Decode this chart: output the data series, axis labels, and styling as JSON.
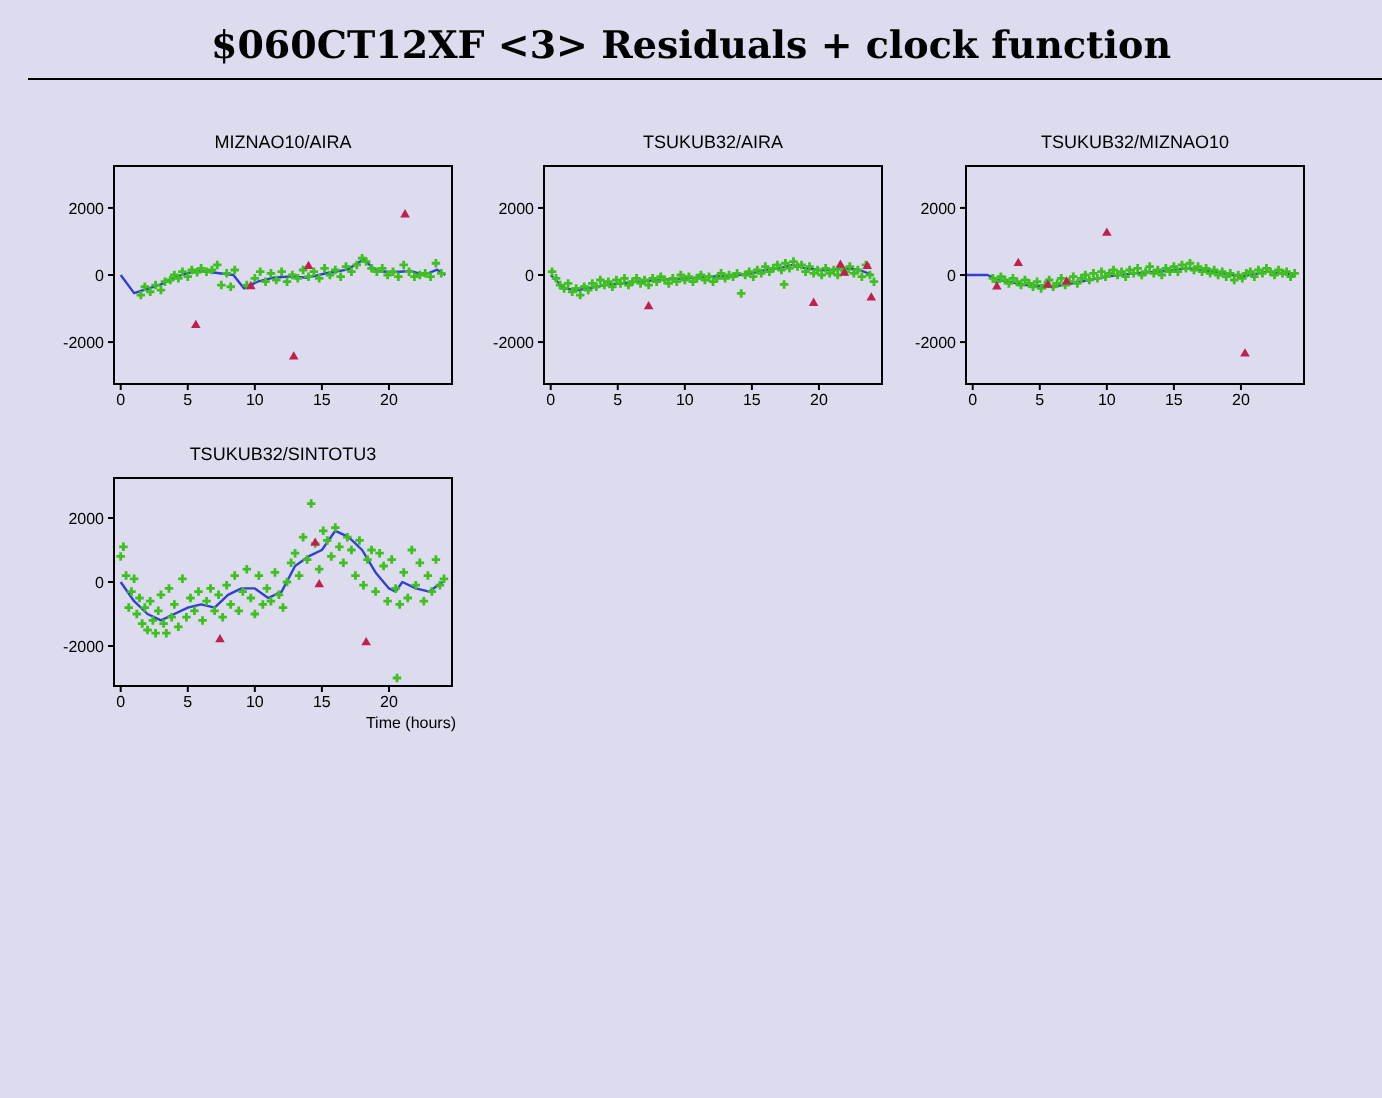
{
  "chart_data": [
    {
      "type": "scatter",
      "title": "MIZNAO10/AIRA",
      "annotations": [
        "$060CT12XF <3> Residuals + clock function"
      ],
      "xlim": [
        -0.5,
        24.7
      ],
      "ylim": [
        -3250,
        3250
      ],
      "xticks": [
        0,
        5,
        10,
        15,
        20
      ],
      "yticks": [
        -2000,
        0,
        2000
      ],
      "series": [
        {
          "type": "scatter",
          "marker": "cross",
          "color": "#40c020",
          "x": [
            1.5,
            1.8,
            2.2,
            2.6,
            3.0,
            3.3,
            3.7,
            4.0,
            4.3,
            4.6,
            5.0,
            5.3,
            5.7,
            6.0,
            6.4,
            6.8,
            7.2,
            7.5,
            7.9,
            8.2,
            8.5,
            9.4,
            10.0,
            10.4,
            10.8,
            11.2,
            11.6,
            12.0,
            12.4,
            12.8,
            13.2,
            13.6,
            14.0,
            14.4,
            14.8,
            15.2,
            15.6,
            16.0,
            16.4,
            16.8,
            17.2,
            17.6,
            18.0,
            18.3,
            18.7,
            19.1,
            19.5,
            19.9,
            20.3,
            20.7,
            21.1,
            21.5,
            21.9,
            22.3,
            22.7,
            23.1,
            23.5,
            23.9
          ],
          "values": [
            -600,
            -350,
            -500,
            -300,
            -450,
            -200,
            -150,
            0,
            -100,
            100,
            -50,
            150,
            80,
            200,
            100,
            150,
            300,
            -300,
            50,
            -350,
            150,
            -300,
            -100,
            100,
            -200,
            50,
            -150,
            100,
            -200,
            0,
            -100,
            150,
            -50,
            100,
            -100,
            200,
            0,
            150,
            -50,
            250,
            100,
            300,
            500,
            400,
            200,
            100,
            200,
            0,
            100,
            -50,
            300,
            100,
            -50,
            0,
            50,
            -50,
            350,
            50
          ]
        },
        {
          "type": "scatter",
          "marker": "triangle",
          "color": "#c02050",
          "x": [
            5.6,
            9.7,
            12.9,
            14.0,
            21.2
          ],
          "values": [
            -1500,
            -340,
            -2440,
            260,
            1800
          ]
        },
        {
          "type": "line",
          "marker": "none",
          "color": "#3040d0",
          "x": [
            0,
            1.0,
            1.8,
            3,
            4,
            5,
            6,
            7.2,
            8.4,
            9.2,
            10.2,
            11.4,
            12.7,
            13.9,
            15.4,
            16.9,
            18.1,
            19.1,
            20.3,
            21.6,
            22.6,
            23.6,
            24.2
          ],
          "values": [
            0,
            -540,
            -440,
            -280,
            -80,
            60,
            120,
            60,
            0,
            -400,
            -200,
            -80,
            -40,
            -80,
            60,
            160,
            460,
            120,
            80,
            120,
            0,
            160,
            0
          ]
        }
      ]
    },
    {
      "type": "scatter",
      "title": "TSUKUB32/AIRA",
      "xlim": [
        -0.5,
        24.7
      ],
      "ylim": [
        -3250,
        3250
      ],
      "xticks": [
        0,
        5,
        10,
        15,
        20
      ],
      "yticks": [
        -2000,
        0,
        2000
      ],
      "series": [
        {
          "type": "scatter",
          "marker": "cross",
          "color": "#40c020",
          "x": [
            0.1,
            0.4,
            0.7,
            1.0,
            1.3,
            1.6,
            1.9,
            2.2,
            2.5,
            2.8,
            3.1,
            3.4,
            3.7,
            4.0,
            4.3,
            4.6,
            4.9,
            5.2,
            5.5,
            5.8,
            6.1,
            6.4,
            6.7,
            7.0,
            7.3,
            7.6,
            7.9,
            8.2,
            8.5,
            8.8,
            9.1,
            9.4,
            9.7,
            10.0,
            10.3,
            10.6,
            10.9,
            11.2,
            11.5,
            11.8,
            12.1,
            12.4,
            12.7,
            13.0,
            13.3,
            13.6,
            13.9,
            14.2,
            14.5,
            14.8,
            15.1,
            15.4,
            15.7,
            16.0,
            16.3,
            16.6,
            16.9,
            17.2,
            17.4,
            17.5,
            17.8,
            18.1,
            18.4,
            18.7,
            19.0,
            19.3,
            19.6,
            19.9,
            20.2,
            20.5,
            20.8,
            21.1,
            21.4,
            21.7,
            22.0,
            22.3,
            22.6,
            22.9,
            23.2,
            23.5,
            23.8,
            24.1
          ],
          "values": [
            100,
            -100,
            -300,
            -400,
            -250,
            -500,
            -400,
            -600,
            -350,
            -450,
            -250,
            -350,
            -150,
            -300,
            -200,
            -350,
            -150,
            -250,
            -100,
            -300,
            -200,
            -100,
            -250,
            -150,
            -300,
            -100,
            -200,
            -50,
            -150,
            -250,
            -100,
            -200,
            0,
            -150,
            -50,
            -200,
            -100,
            0,
            -150,
            -50,
            -200,
            -100,
            50,
            -100,
            0,
            -50,
            50,
            -550,
            0,
            100,
            -50,
            150,
            50,
            250,
            100,
            200,
            300,
            150,
            -280,
            350,
            200,
            400,
            250,
            300,
            100,
            250,
            50,
            150,
            0,
            200,
            50,
            150,
            0,
            200,
            100,
            250,
            50,
            150,
            -50,
            300,
            0,
            -200
          ]
        },
        {
          "type": "scatter",
          "marker": "triangle",
          "color": "#c02050",
          "x": [
            7.3,
            19.6,
            21.6,
            21.9,
            23.6,
            23.9
          ],
          "values": [
            -940,
            -840,
            300,
            60,
            260,
            -680
          ]
        },
        {
          "type": "line",
          "marker": "none",
          "color": "#3040d0",
          "x": [
            0,
            1,
            2,
            3,
            4,
            6,
            8,
            10,
            12,
            14,
            15,
            16,
            17,
            18,
            19,
            20,
            21,
            22,
            23,
            24
          ],
          "values": [
            0,
            -400,
            -450,
            -380,
            -300,
            -220,
            -150,
            -100,
            -50,
            0,
            50,
            150,
            200,
            300,
            200,
            150,
            150,
            200,
            150,
            0
          ]
        }
      ]
    },
    {
      "type": "scatter",
      "title": "TSUKUB32/MIZNAO10",
      "xlim": [
        -0.5,
        24.7
      ],
      "ylim": [
        -3250,
        3250
      ],
      "xticks": [
        0,
        5,
        10,
        15,
        20
      ],
      "yticks": [
        -2000,
        0,
        2000
      ],
      "series": [
        {
          "type": "scatter",
          "marker": "cross",
          "color": "#40c020",
          "x": [
            1.5,
            1.8,
            2.1,
            2.4,
            2.7,
            3.0,
            3.3,
            3.6,
            3.9,
            4.2,
            4.5,
            4.8,
            5.1,
            5.4,
            5.7,
            6.0,
            6.3,
            6.6,
            6.9,
            7.2,
            7.5,
            7.8,
            8.1,
            8.4,
            8.7,
            9.0,
            9.3,
            9.6,
            9.9,
            10.2,
            10.5,
            10.8,
            11.1,
            11.4,
            11.7,
            12.0,
            12.3,
            12.6,
            12.9,
            13.2,
            13.5,
            13.8,
            14.1,
            14.4,
            14.7,
            15.0,
            15.3,
            15.6,
            15.9,
            16.2,
            16.5,
            16.8,
            17.1,
            17.4,
            17.7,
            18.0,
            18.3,
            18.6,
            18.9,
            19.2,
            19.5,
            19.8,
            20.1,
            20.4,
            20.7,
            21.0,
            21.3,
            21.6,
            21.9,
            22.2,
            22.5,
            22.8,
            23.1,
            23.4,
            23.7,
            24.0
          ],
          "values": [
            -100,
            -200,
            -50,
            -150,
            -250,
            -100,
            -200,
            -300,
            -150,
            -250,
            -350,
            -200,
            -400,
            -300,
            -150,
            -350,
            -250,
            -100,
            -300,
            -200,
            -50,
            -250,
            -100,
            0,
            -150,
            50,
            -100,
            100,
            -50,
            50,
            150,
            0,
            100,
            -50,
            150,
            50,
            200,
            0,
            100,
            250,
            50,
            150,
            0,
            200,
            100,
            250,
            100,
            300,
            200,
            350,
            150,
            250,
            100,
            200,
            50,
            150,
            0,
            100,
            -50,
            50,
            -150,
            0,
            -100,
            50,
            100,
            -50,
            150,
            50,
            200,
            100,
            0,
            150,
            50,
            100,
            -50,
            50
          ]
        },
        {
          "type": "scatter",
          "marker": "triangle",
          "color": "#c02050",
          "x": [
            1.8,
            3.4,
            5.6,
            7.0,
            10.0,
            20.3
          ],
          "values": [
            -350,
            350,
            -300,
            -200,
            1250,
            -2350
          ]
        },
        {
          "type": "line",
          "marker": "none",
          "color": "#3040d0",
          "x": [
            -0.5,
            1.1,
            2,
            4,
            6,
            8,
            10,
            12,
            14,
            16,
            18,
            20,
            22,
            24
          ],
          "values": [
            0,
            0,
            -150,
            -300,
            -350,
            -200,
            -50,
            50,
            100,
            200,
            100,
            -50,
            100,
            0
          ]
        }
      ]
    },
    {
      "type": "scatter",
      "title": "TSUKUB32/SINTOTU3",
      "xlabel": "Time (hours)",
      "xlim": [
        -0.5,
        24.7
      ],
      "ylim": [
        -3250,
        3250
      ],
      "xticks": [
        0,
        5,
        10,
        15,
        20
      ],
      "yticks": [
        -2000,
        0,
        2000
      ],
      "series": [
        {
          "type": "scatter",
          "marker": "cross",
          "color": "#40c020",
          "x": [
            0,
            0.2,
            0.4,
            0.6,
            0.8,
            1.0,
            1.2,
            1.4,
            1.6,
            1.8,
            2.0,
            2.2,
            2.4,
            2.6,
            2.8,
            3.0,
            3.2,
            3.4,
            3.6,
            3.8,
            4.0,
            4.3,
            4.6,
            4.9,
            5.2,
            5.5,
            5.8,
            6.1,
            6.4,
            6.7,
            7.0,
            7.3,
            7.6,
            7.9,
            8.2,
            8.5,
            8.8,
            9.1,
            9.4,
            9.7,
            10.0,
            10.3,
            10.6,
            10.9,
            11.2,
            11.5,
            11.8,
            12.1,
            12.4,
            12.7,
            13.0,
            13.3,
            13.6,
            13.9,
            14.2,
            14.5,
            14.8,
            15.1,
            15.4,
            15.7,
            16.0,
            16.3,
            16.6,
            16.9,
            17.2,
            17.5,
            17.8,
            18.1,
            18.4,
            18.7,
            19.0,
            19.3,
            19.6,
            19.9,
            20.2,
            20.5,
            20.6,
            20.8,
            21.1,
            21.4,
            21.7,
            22.0,
            22.3,
            22.6,
            22.9,
            23.2,
            23.5,
            23.8,
            24.1
          ],
          "values": [
            800,
            1100,
            200,
            -800,
            -300,
            100,
            -1000,
            -500,
            -1300,
            -800,
            -1500,
            -600,
            -1200,
            -1600,
            -900,
            -400,
            -1300,
            -1600,
            -200,
            -1100,
            -700,
            -1400,
            100,
            -1100,
            -500,
            -900,
            -300,
            -1200,
            -600,
            -200,
            -900,
            -400,
            -1100,
            -100,
            -700,
            200,
            -900,
            -300,
            400,
            -500,
            -1000,
            200,
            -700,
            -200,
            -600,
            300,
            -400,
            -800,
            0,
            600,
            900,
            200,
            1400,
            700,
            2450,
            1200,
            400,
            1600,
            1300,
            800,
            1700,
            1100,
            600,
            1400,
            1000,
            200,
            1300,
            -100,
            700,
            1000,
            -300,
            900,
            500,
            -600,
            700,
            -200,
            -3000,
            -700,
            300,
            -500,
            1000,
            -100,
            600,
            -600,
            200,
            -300,
            700,
            -100,
            100
          ]
        },
        {
          "type": "scatter",
          "marker": "triangle",
          "color": "#c02050",
          "x": [
            7.4,
            14.5,
            14.8,
            18.3
          ],
          "values": [
            -1800,
            1220,
            -80,
            -1890
          ]
        },
        {
          "type": "line",
          "marker": "none",
          "color": "#3040d0",
          "x": [
            0,
            1,
            2,
            3,
            4,
            5,
            6,
            7,
            8,
            9,
            10,
            11,
            12,
            13,
            14,
            15,
            16,
            17,
            18,
            19,
            20,
            20.5,
            21,
            22,
            23,
            24
          ],
          "values": [
            0,
            -600,
            -1000,
            -1200,
            -1000,
            -800,
            -700,
            -800,
            -400,
            -200,
            -200,
            -500,
            -300,
            500,
            800,
            1000,
            1600,
            1400,
            1000,
            300,
            -200,
            -300,
            0,
            -200,
            -300,
            0
          ]
        }
      ]
    }
  ]
}
